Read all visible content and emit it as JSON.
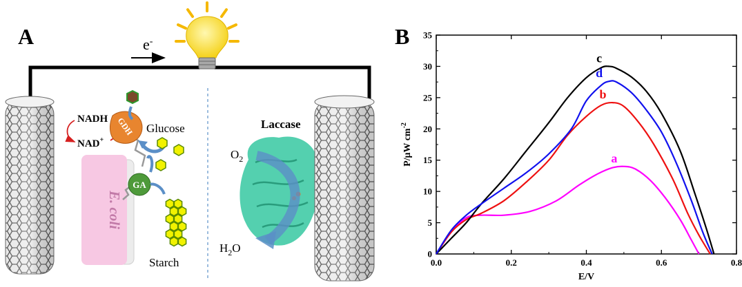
{
  "panel_a": {
    "letter": "A",
    "electron": "e",
    "electron_sup": "-",
    "nadh": "NADH",
    "nad": "NAD",
    "nad_sup": "+",
    "gdh": "GDH",
    "ga": "GA",
    "glucose": "Glucose",
    "ecoli": "E. coli",
    "starch": "Starch",
    "laccase": "Laccase",
    "o2": "O",
    "o2_sub": "2",
    "h2o_a": "H",
    "h2o_sub": "2",
    "h2o_b": "O"
  },
  "panel_b": {
    "letter": "B"
  },
  "colors": {
    "bulb": "#f5d21b",
    "gdh": "#e8852f",
    "ga": "#4e9a3a",
    "ecoli": "#f7c8e3",
    "starch": "#f2f200",
    "laccase": "#3cc9a4",
    "arrow_blue": "#5b8fc7",
    "nadh_arrow": "#d62020",
    "product_hex": "#7a4a2a"
  },
  "chart_data": {
    "type": "line",
    "xlabel": "E/V",
    "ylabel": "P/μW cm",
    "ylabel_sup": "-2",
    "xlim": [
      0.0,
      0.8
    ],
    "ylim": [
      0,
      35
    ],
    "xticks": [
      "0.0",
      "0.2",
      "0.4",
      "0.6",
      "0.8"
    ],
    "yticks": [
      "0",
      "5",
      "10",
      "15",
      "20",
      "25",
      "30",
      "35"
    ],
    "series": [
      {
        "name": "a",
        "color": "#ff00ff",
        "x": [
          0.0,
          0.04,
          0.08,
          0.12,
          0.18,
          0.25,
          0.32,
          0.38,
          0.43,
          0.47,
          0.5,
          0.53,
          0.57,
          0.61,
          0.65,
          0.68,
          0.7
        ],
        "y": [
          0.0,
          3.5,
          5.8,
          6.2,
          6.2,
          6.8,
          8.5,
          11.0,
          12.8,
          13.8,
          14.0,
          13.6,
          11.8,
          9.0,
          5.5,
          2.2,
          0.0
        ]
      },
      {
        "name": "b",
        "color": "#ee1111",
        "x": [
          0.0,
          0.04,
          0.08,
          0.12,
          0.18,
          0.24,
          0.3,
          0.35,
          0.4,
          0.44,
          0.47,
          0.5,
          0.54,
          0.58,
          0.63,
          0.67,
          0.7,
          0.73
        ],
        "y": [
          0.0,
          3.5,
          5.5,
          6.5,
          8.5,
          11.5,
          15.0,
          19.0,
          22.0,
          23.8,
          24.2,
          23.6,
          21.0,
          17.5,
          12.0,
          6.5,
          3.0,
          0.0
        ]
      },
      {
        "name": "c",
        "color": "#000000",
        "x": [
          0.0,
          0.04,
          0.08,
          0.12,
          0.18,
          0.24,
          0.3,
          0.35,
          0.4,
          0.44,
          0.46,
          0.48,
          0.52,
          0.56,
          0.6,
          0.65,
          0.69,
          0.72,
          0.74
        ],
        "y": [
          0.0,
          2.5,
          5.0,
          8.0,
          12.0,
          16.5,
          21.0,
          25.0,
          28.2,
          29.8,
          30.0,
          29.7,
          28.3,
          26.0,
          22.5,
          16.5,
          9.5,
          4.0,
          0.0
        ]
      },
      {
        "name": "d",
        "color": "#1111ee",
        "x": [
          0.0,
          0.04,
          0.08,
          0.12,
          0.18,
          0.24,
          0.3,
          0.36,
          0.4,
          0.44,
          0.46,
          0.48,
          0.52,
          0.56,
          0.6,
          0.64,
          0.68,
          0.71,
          0.735
        ],
        "y": [
          0.0,
          3.8,
          6.2,
          8.0,
          10.5,
          13.0,
          16.0,
          20.0,
          24.5,
          27.0,
          27.6,
          27.5,
          25.8,
          23.0,
          19.5,
          14.5,
          8.5,
          3.5,
          0.0
        ]
      }
    ],
    "series_labels": [
      {
        "text": "c",
        "color": "#000000"
      },
      {
        "text": "d",
        "color": "#1111ee"
      },
      {
        "text": "b",
        "color": "#ee1111"
      },
      {
        "text": "a",
        "color": "#ff00ff"
      }
    ]
  }
}
